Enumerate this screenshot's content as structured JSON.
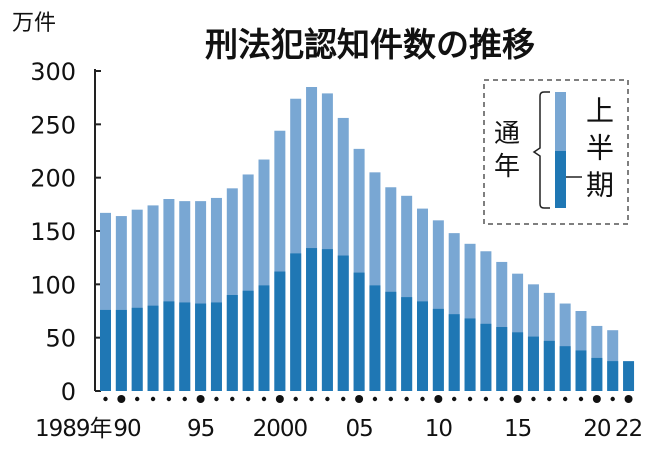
{
  "chart_data": {
    "type": "bar",
    "stacked_overlay": true,
    "title": "刑法犯認知件数の推移",
    "ylabel": "万件",
    "ylim": [
      0,
      300
    ],
    "yticks": [
      0,
      50,
      100,
      150,
      200,
      250,
      300
    ],
    "grid": false,
    "x": [
      1989,
      1990,
      1991,
      1992,
      1993,
      1994,
      1995,
      1996,
      1997,
      1998,
      1999,
      2000,
      2001,
      2002,
      2003,
      2004,
      2005,
      2006,
      2007,
      2008,
      2009,
      2010,
      2011,
      2012,
      2013,
      2014,
      2015,
      2016,
      2017,
      2018,
      2019,
      2020,
      2021,
      2022
    ],
    "xtick_labels": [
      {
        "year": 1989,
        "label": "1989年"
      },
      {
        "year": 1990,
        "label": "90"
      },
      {
        "year": 1995,
        "label": "95"
      },
      {
        "year": 2000,
        "label": "2000"
      },
      {
        "year": 2005,
        "label": "05"
      },
      {
        "year": 2010,
        "label": "10"
      },
      {
        "year": 2015,
        "label": "15"
      },
      {
        "year": 2020,
        "label": "20"
      },
      {
        "year": 2022,
        "label": "22"
      }
    ],
    "series": [
      {
        "name": "通年",
        "color": "#79a7d3",
        "values": [
          167,
          164,
          170,
          174,
          180,
          178,
          178,
          181,
          190,
          203,
          217,
          244,
          274,
          285,
          279,
          256,
          227,
          205,
          191,
          183,
          171,
          160,
          148,
          138,
          131,
          121,
          110,
          100,
          92,
          82,
          75,
          61,
          57,
          null
        ]
      },
      {
        "name": "上半期",
        "color": "#1f77b4",
        "values": [
          76,
          76,
          78,
          80,
          84,
          83,
          82,
          83,
          90,
          94,
          99,
          112,
          129,
          134,
          133,
          127,
          111,
          99,
          93,
          88,
          84,
          77,
          72,
          68,
          63,
          60,
          55,
          51,
          47,
          42,
          38,
          31,
          28,
          28
        ]
      }
    ],
    "legend": {
      "position": "top-right",
      "annual": "通年",
      "half": "上半期"
    }
  }
}
